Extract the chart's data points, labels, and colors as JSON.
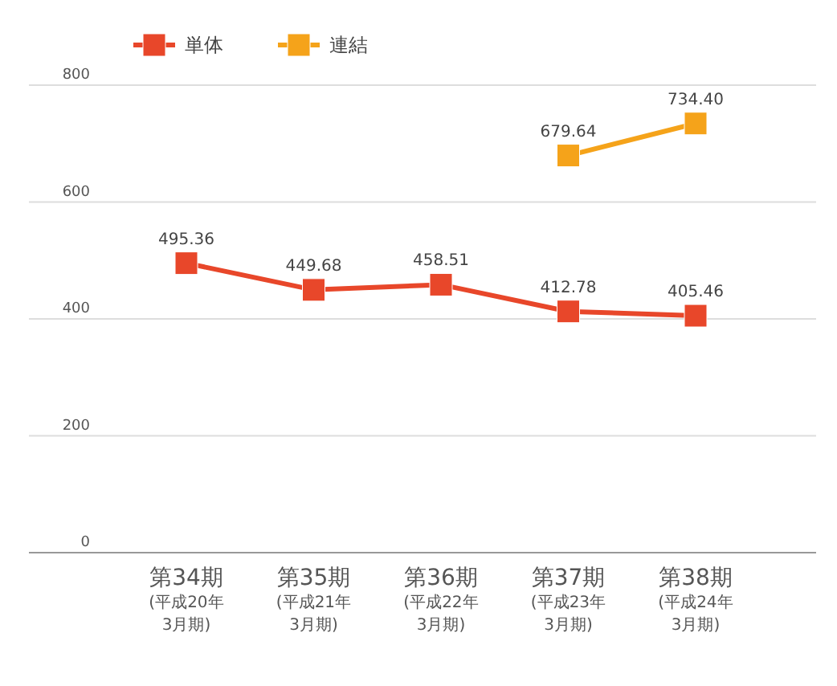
{
  "chart_data": {
    "type": "line",
    "categories": [
      "第34期\n(平成20年\n3月期)",
      "第35期\n(平成21年\n3月期)",
      "第36期\n(平成22年\n3月期)",
      "第37期\n(平成23年\n3月期)",
      "第38期\n(平成24年\n3月期)"
    ],
    "series": [
      {
        "name": "単体",
        "color": "#e8472a",
        "values": [
          495.36,
          449.68,
          458.51,
          412.78,
          405.46
        ],
        "value_labels": [
          "495.36",
          "449.68",
          "458.51",
          "412.78",
          "405.46"
        ]
      },
      {
        "name": "連結",
        "color": "#f5a31a",
        "values": [
          null,
          null,
          null,
          679.64,
          734.4
        ],
        "value_labels": [
          null,
          null,
          null,
          "679.64",
          "734.40"
        ]
      }
    ],
    "ylim": [
      0,
      800
    ],
    "yticks": [
      0,
      200,
      400,
      600,
      800
    ],
    "grid": "y",
    "legend": "top left",
    "marker": "square",
    "line_style": "solid"
  }
}
